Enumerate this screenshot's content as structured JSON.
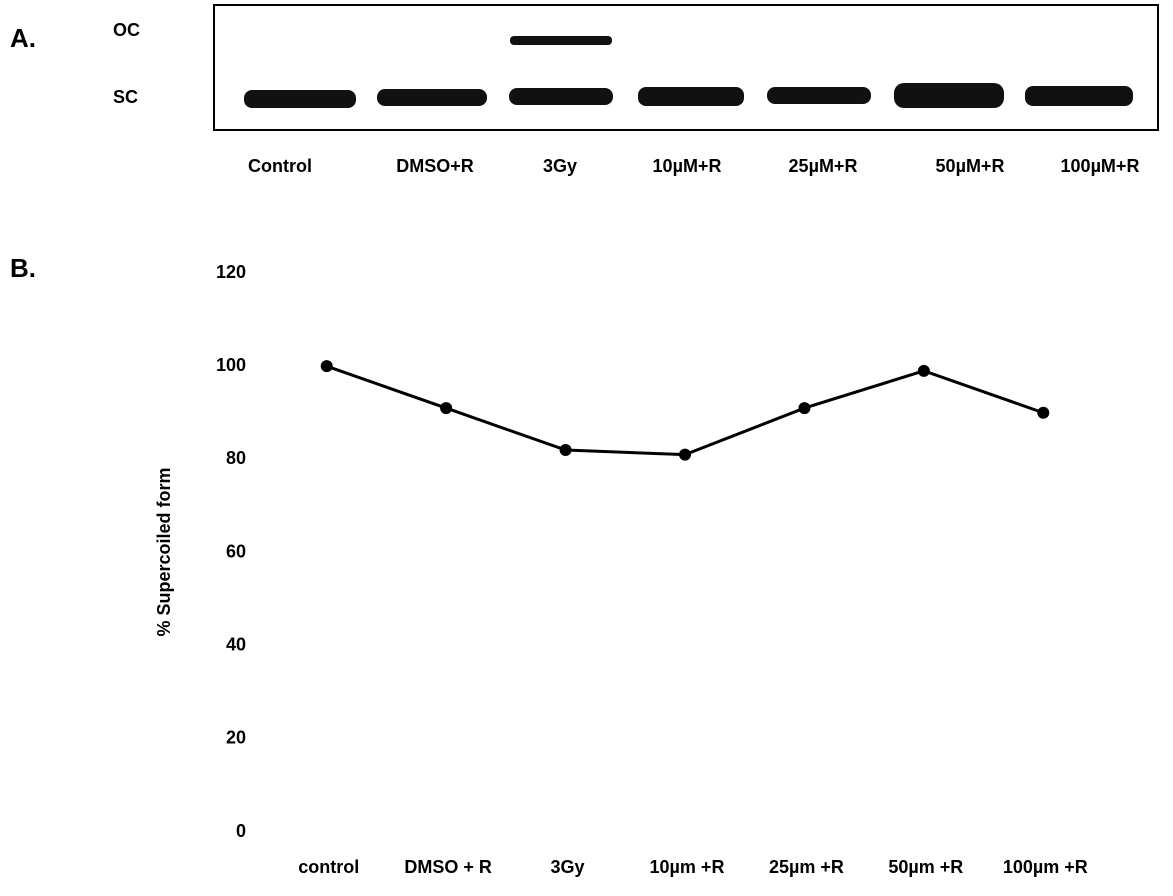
{
  "gel": {
    "panel_label": "A.",
    "band_labels": [
      "OC",
      "SC"
    ],
    "lanes": [
      "Control",
      "DMSO+R",
      "3Gy",
      "10µM+R",
      "25µM+R",
      "50µM+R",
      "100µM+R"
    ]
  },
  "chart_data": {
    "type": "line",
    "panel_label": "B.",
    "ylabel": "% Supercoiled form",
    "categories": [
      "control",
      "DMSO + R",
      "3Gy",
      "10µm +R",
      "25µm +R",
      "50µm +R",
      "100µm +R"
    ],
    "values": [
      100,
      91,
      82,
      81,
      91,
      99,
      90
    ],
    "color": "#000000",
    "ylim": [
      0,
      120
    ],
    "yticks": [
      0,
      20,
      40,
      60,
      80,
      100,
      120
    ],
    "grid": false
  }
}
